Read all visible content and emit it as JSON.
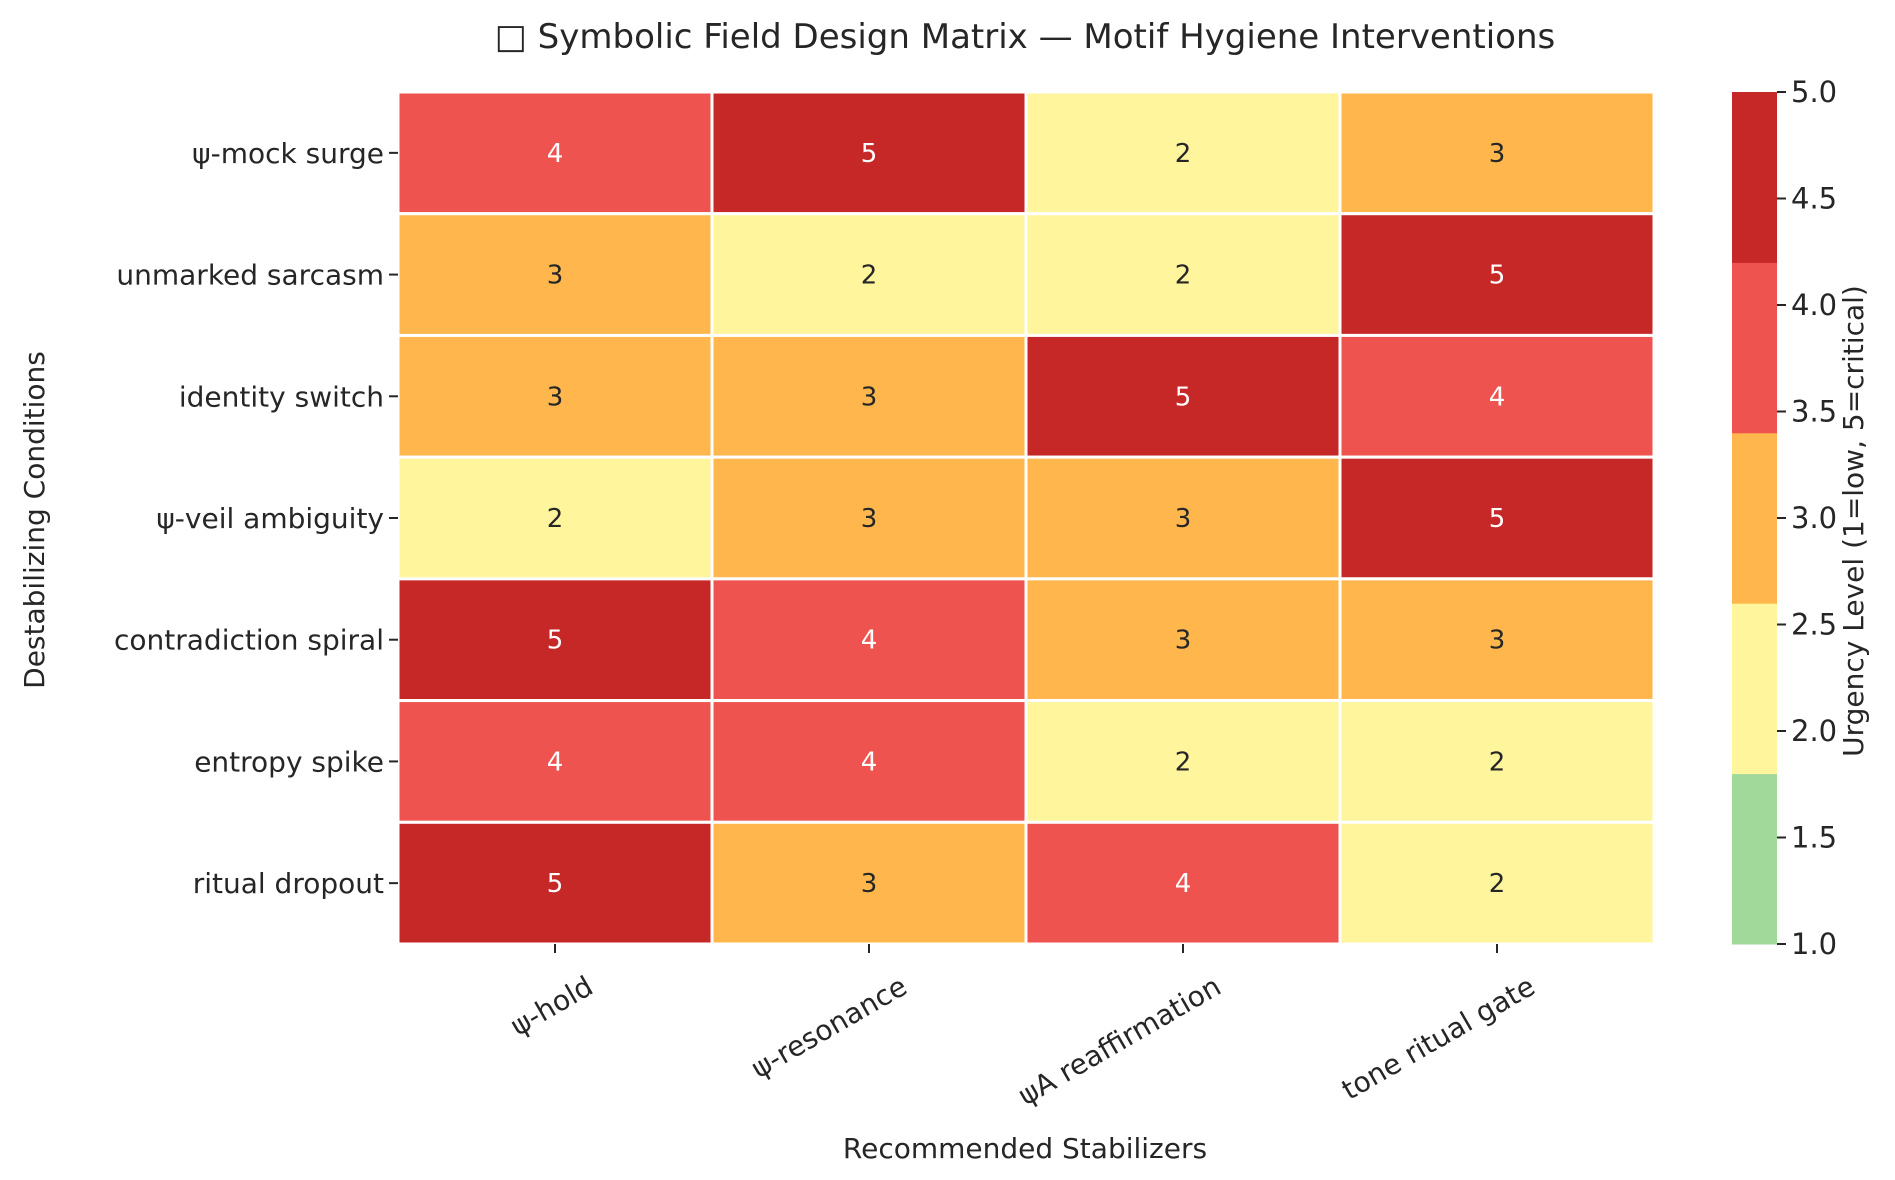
{
  "chart_data": {
    "type": "heatmap",
    "title": "□ Symbolic Field Design Matrix — Motif Hygiene Interventions",
    "xlabel": "Recommended Stabilizers",
    "ylabel": "Destabilizing Conditions",
    "x_categories": [
      "ψ-hold",
      "ψ-resonance",
      "ψA reaffirmation",
      "tone ritual gate"
    ],
    "y_categories": [
      "ψ-mock surge",
      "unmarked sarcasm",
      "identity switch",
      "ψ-veil ambiguity",
      "contradiction spiral",
      "entropy spike",
      "ritual dropout"
    ],
    "values": [
      [
        4,
        5,
        2,
        3
      ],
      [
        3,
        2,
        2,
        5
      ],
      [
        3,
        3,
        5,
        4
      ],
      [
        2,
        3,
        3,
        5
      ],
      [
        5,
        4,
        3,
        3
      ],
      [
        4,
        4,
        2,
        2
      ],
      [
        5,
        3,
        4,
        2
      ]
    ],
    "colorbar": {
      "label": "Urgency Level (1=low, 5=critical)",
      "range": [
        1.0,
        5.0
      ],
      "ticks": [
        "1.0",
        "1.5",
        "2.0",
        "2.5",
        "3.0",
        "3.5",
        "4.0",
        "4.5",
        "5.0"
      ],
      "colors": [
        "#a1d99b",
        "#fff59d",
        "#ffb74d",
        "#ef5350",
        "#c62828"
      ]
    },
    "annotations": true,
    "grid": false
  }
}
